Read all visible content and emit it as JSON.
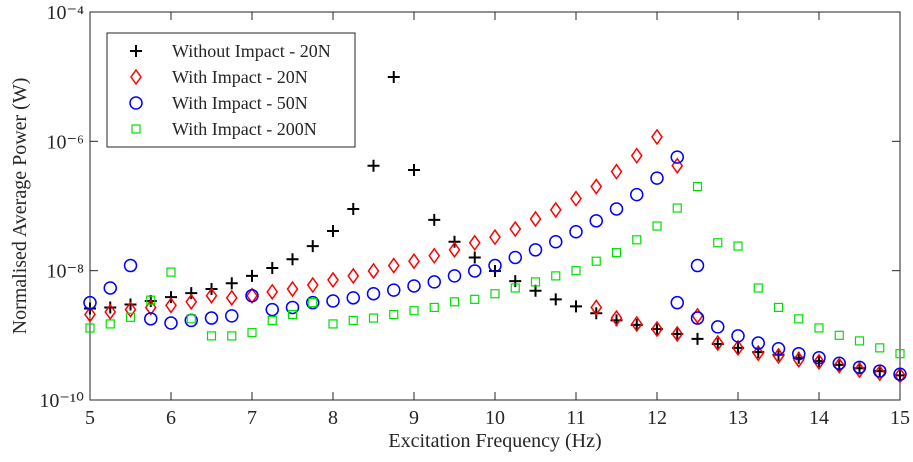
{
  "chart_data": {
    "type": "scatter",
    "x_label": "Excitation Frequency (Hz)",
    "y_label": "Normalised Average Power (W)",
    "xlim": [
      5,
      15
    ],
    "xticks": [
      5,
      6,
      7,
      8,
      9,
      10,
      11,
      12,
      13,
      14,
      15
    ],
    "ylim": [
      1e-10,
      0.0001
    ],
    "yticks": [
      {
        "value": 1e-10,
        "label": "10⁻¹⁰"
      },
      {
        "value": 1e-08,
        "label": "10⁻⁸"
      },
      {
        "value": 1e-06,
        "label": "10⁻⁶"
      },
      {
        "value": 0.0001,
        "label": "10⁻⁴"
      }
    ],
    "y_scale": "log",
    "legend": "upper left",
    "series": [
      {
        "name": "Without Impact - 20N",
        "color": "#000000",
        "marker": "plus",
        "x": [
          5,
          5.25,
          5.5,
          5.75,
          6,
          6.25,
          6.5,
          6.75,
          7,
          7.25,
          7.5,
          7.75,
          8,
          8.25,
          8.5,
          8.75,
          9,
          9.25,
          9.5,
          9.75,
          10,
          10.25,
          10.5,
          10.75,
          11,
          11.25,
          11.5,
          11.75,
          12,
          12.25,
          12.5,
          12.75,
          13,
          13.25,
          13.5,
          13.75,
          14,
          14.25,
          14.5,
          14.75,
          15
        ],
        "values": [
          2.6e-09,
          2.7e-09,
          3e-09,
          3.4e-09,
          3.9e-09,
          4.5e-09,
          5.2e-09,
          6.4e-09,
          8.3e-09,
          1.1e-08,
          1.5e-08,
          2.4e-08,
          4.1e-08,
          9e-08,
          4.2e-07,
          9.9e-06,
          3.6e-07,
          6.1e-08,
          2.8e-08,
          1.6e-08,
          9.9e-09,
          6.9e-09,
          4.9e-09,
          3.6e-09,
          2.8e-09,
          2.2e-09,
          1.7e-09,
          1.45e-09,
          1.25e-09,
          1.05e-09,
          8.8e-10,
          7.35e-10,
          6.4e-10,
          5.5e-10,
          5e-10,
          4.5e-10,
          4e-10,
          3.5e-10,
          3.1e-10,
          2.8e-10,
          2.4e-10
        ]
      },
      {
        "name": "With Impact - 20N",
        "color": "#ff0000",
        "marker": "diamond",
        "x": [
          5,
          5.25,
          5.5,
          5.75,
          6,
          6.25,
          6.5,
          6.75,
          7,
          7.25,
          7.5,
          7.75,
          8,
          8.25,
          8.5,
          8.75,
          9,
          9.25,
          9.5,
          9.75,
          10,
          10.25,
          10.5,
          10.75,
          11,
          11.25,
          11.5,
          11.75,
          12,
          12.25,
          12.5,
          11.25,
          11.5,
          11.75,
          12,
          12.25,
          12.75,
          13,
          13.25,
          13.5,
          13.75,
          14,
          14.25,
          14.5,
          14.75,
          15
        ],
        "values": [
          2.1e-09,
          2.3e-09,
          2.5e-09,
          2.7e-09,
          2.9e-09,
          3.3e-09,
          4.1e-09,
          3.8e-09,
          4.1e-09,
          4.7e-09,
          5.2e-09,
          6e-09,
          7.2e-09,
          8.3e-09,
          9.9e-09,
          1.2e-08,
          1.4e-08,
          1.7e-08,
          2.1e-08,
          2.7e-08,
          3.3e-08,
          4.4e-08,
          6.3e-08,
          8.7e-08,
          1.3e-07,
          2e-07,
          3.4e-07,
          6e-07,
          1.17e-06,
          4.2e-07,
          2e-09,
          2.7e-09,
          1.85e-09,
          1.5e-09,
          1.25e-09,
          1.05e-09,
          7.6e-10,
          6.4e-10,
          5.3e-10,
          4.8e-10,
          4.2e-10,
          3.9e-10,
          3.4e-10,
          2.9e-10,
          2.6e-10,
          2.4e-10
        ]
      },
      {
        "name": "With Impact - 50N",
        "color": "#0000ff",
        "marker": "circle",
        "x": [
          5,
          5.25,
          5.5,
          5.75,
          6,
          6.25,
          6.5,
          6.75,
          7,
          7.25,
          7.5,
          7.75,
          8,
          8.25,
          8.5,
          8.75,
          9,
          9.25,
          9.5,
          9.75,
          10,
          10.25,
          10.5,
          10.75,
          11,
          11.25,
          11.5,
          11.75,
          12,
          12.25,
          12.5,
          12.25,
          12.5,
          12.75,
          13,
          13.25,
          13.5,
          13.75,
          14,
          14.25,
          14.5,
          14.75,
          15
        ],
        "values": [
          3.2e-09,
          5.4e-09,
          1.2e-08,
          1.8e-09,
          1.55e-09,
          1.7e-09,
          1.85e-09,
          2e-09,
          4.1e-09,
          2.5e-09,
          2.7e-09,
          3.2e-09,
          3.4e-09,
          3.8e-09,
          4.4e-09,
          5e-09,
          5.8e-09,
          6.7e-09,
          8.3e-09,
          9.9e-09,
          1.2e-08,
          1.6e-08,
          2.1e-08,
          2.8e-08,
          4e-08,
          5.9e-08,
          9e-08,
          1.5e-07,
          2.7e-07,
          5.7e-07,
          1.2e-08,
          3.2e-09,
          1.85e-09,
          1.35e-09,
          9.8e-10,
          7.6e-10,
          6.2e-10,
          5.2e-10,
          4.5e-10,
          3.7e-10,
          3.2e-10,
          2.8e-10,
          2.5e-10
        ]
      },
      {
        "name": "With Impact - 200N",
        "color": "#00e000",
        "marker": "square",
        "x": [
          5,
          5.25,
          5.5,
          5.75,
          6,
          6.25,
          6.5,
          6.75,
          7,
          7.25,
          7.5,
          7.75,
          8,
          8.25,
          8.5,
          8.75,
          9,
          9.25,
          9.5,
          9.75,
          10,
          10.25,
          10.5,
          10.75,
          11,
          11.25,
          11.5,
          11.75,
          12,
          12.25,
          12.5,
          12.75,
          13,
          13.25,
          13.5,
          13.75,
          14,
          14.25,
          14.5,
          14.75,
          15
        ],
        "values": [
          1.3e-09,
          1.5e-09,
          1.9e-09,
          3.5e-09,
          9.5e-09,
          1.8e-09,
          9.8e-10,
          9.8e-10,
          1.1e-09,
          1.7e-09,
          2.1e-09,
          3.2e-09,
          1.5e-09,
          1.7e-09,
          1.85e-09,
          2.1e-09,
          2.4e-09,
          2.7e-09,
          3.3e-09,
          3.6e-09,
          4.4e-09,
          5.4e-09,
          6.7e-09,
          8.3e-09,
          1e-08,
          1.4e-08,
          1.9e-08,
          3e-08,
          4.9e-08,
          9.3e-08,
          2e-07,
          2.7e-08,
          2.4e-08,
          5.4e-09,
          2.7e-09,
          1.8e-09,
          1.3e-09,
          1e-09,
          8.2e-10,
          6.4e-10,
          5.2e-10
        ]
      }
    ]
  }
}
